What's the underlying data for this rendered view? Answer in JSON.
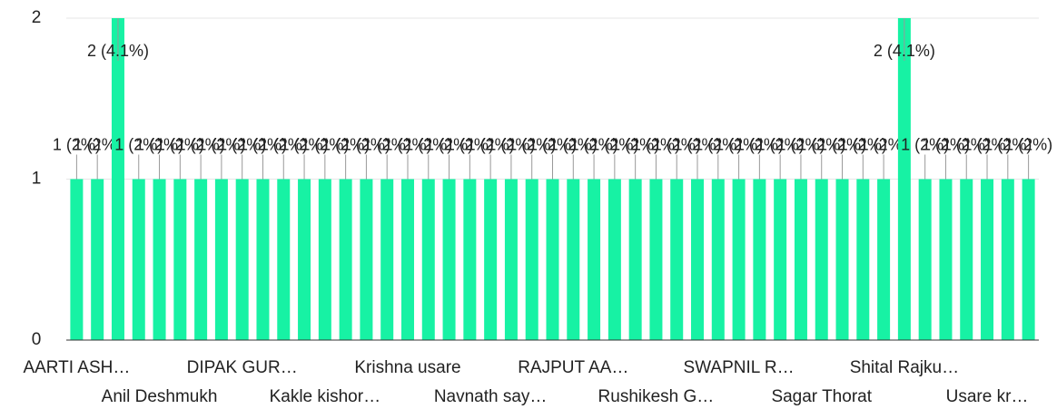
{
  "chart_data": {
    "type": "bar",
    "categories": [
      "AARTI ASH…",
      null,
      null,
      null,
      "Anil Deshmukh",
      null,
      null,
      null,
      "DIPAK GUR…",
      null,
      null,
      null,
      "Kakle kishor…",
      null,
      null,
      null,
      "Krishna usare",
      null,
      null,
      null,
      "Navnath say…",
      null,
      null,
      null,
      "RAJPUT AA…",
      null,
      null,
      null,
      "Rushikesh G…",
      null,
      null,
      null,
      "SWAPNIL R…",
      null,
      null,
      null,
      "Sagar Thorat",
      null,
      null,
      null,
      "Shital Rajku…",
      null,
      null,
      null,
      "Usare kr…",
      null,
      null
    ],
    "values": [
      1,
      1,
      2,
      1,
      1,
      1,
      1,
      1,
      1,
      1,
      1,
      1,
      1,
      1,
      1,
      1,
      1,
      1,
      1,
      1,
      1,
      1,
      1,
      1,
      1,
      1,
      1,
      1,
      1,
      1,
      1,
      1,
      1,
      1,
      1,
      1,
      1,
      1,
      1,
      1,
      2,
      1,
      1,
      1,
      1,
      1,
      1
    ],
    "value_labels": [
      "1 (2%)",
      "1 (2%)",
      "2 (4.1%)",
      "1 (2%)",
      "1 (2%)",
      "1 (2%)",
      "1 (2%)",
      "1 (2%)",
      "1 (2%)",
      "1 (2%)",
      "1 (2%)",
      "1 (2%)",
      "1 (2%)",
      "1 (2%)",
      "1 (2%)",
      "1 (2%)",
      "1 (2%)",
      "1 (2%)",
      "1 (2%)",
      "1 (2%)",
      "1 (2%)",
      "1 (2%)",
      "1 (2%)",
      "1 (2%)",
      "1 (2%)",
      "1 (2%)",
      "1 (2%)",
      "1 (2%)",
      "1 (2%)",
      "1 (2%)",
      "1 (2%)",
      "1 (2%)",
      "1 (2%)",
      "1 (2%)",
      "1 (2%)",
      "1 (2%)",
      "1 (2%)",
      "1 (2%)",
      "1 (2%)",
      "1 (2%)",
      "2 (4.1%)",
      "1 (2%)",
      "1 (2%)",
      "1 (2%)",
      "1 (2%)",
      "1 (2%)",
      "1 (2%)"
    ],
    "color": "#17f2a4",
    "ylim": [
      0,
      2
    ],
    "yticks": [
      0,
      1,
      2
    ],
    "grid": true
  }
}
